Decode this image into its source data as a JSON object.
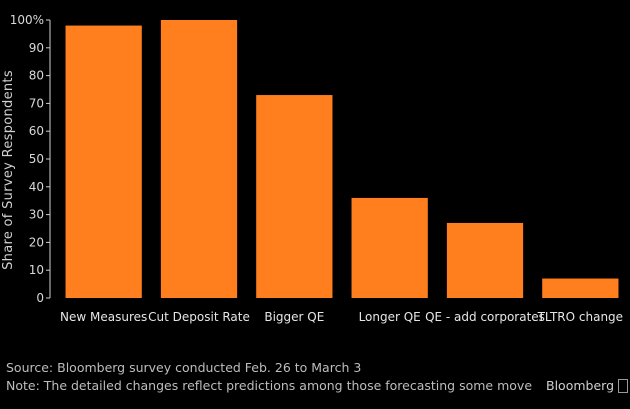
{
  "chart_data": {
    "type": "bar",
    "categories": [
      "New Measures",
      "Cut Deposit Rate",
      "Bigger QE",
      "Longer QE",
      "QE - add corporates",
      "TLTRO change"
    ],
    "values": [
      98,
      100,
      73,
      36,
      27,
      7
    ],
    "ylabel": "Share of Survey Respondents",
    "ylim": [
      0,
      100
    ],
    "yticks": [
      0,
      10,
      20,
      30,
      40,
      50,
      60,
      70,
      80,
      90,
      100
    ],
    "ytick_labels": [
      "0",
      "10",
      "20",
      "30",
      "40",
      "50",
      "60",
      "70",
      "80",
      "90",
      "100%"
    ],
    "bar_color": "#ff7f1f",
    "grid": false
  },
  "footer": {
    "source": "Source: Bloomberg survey conducted Feb. 26 to March 3",
    "note": "Note: The detailed changes reflect predictions among those forecasting some move",
    "brand": "Bloomberg"
  }
}
